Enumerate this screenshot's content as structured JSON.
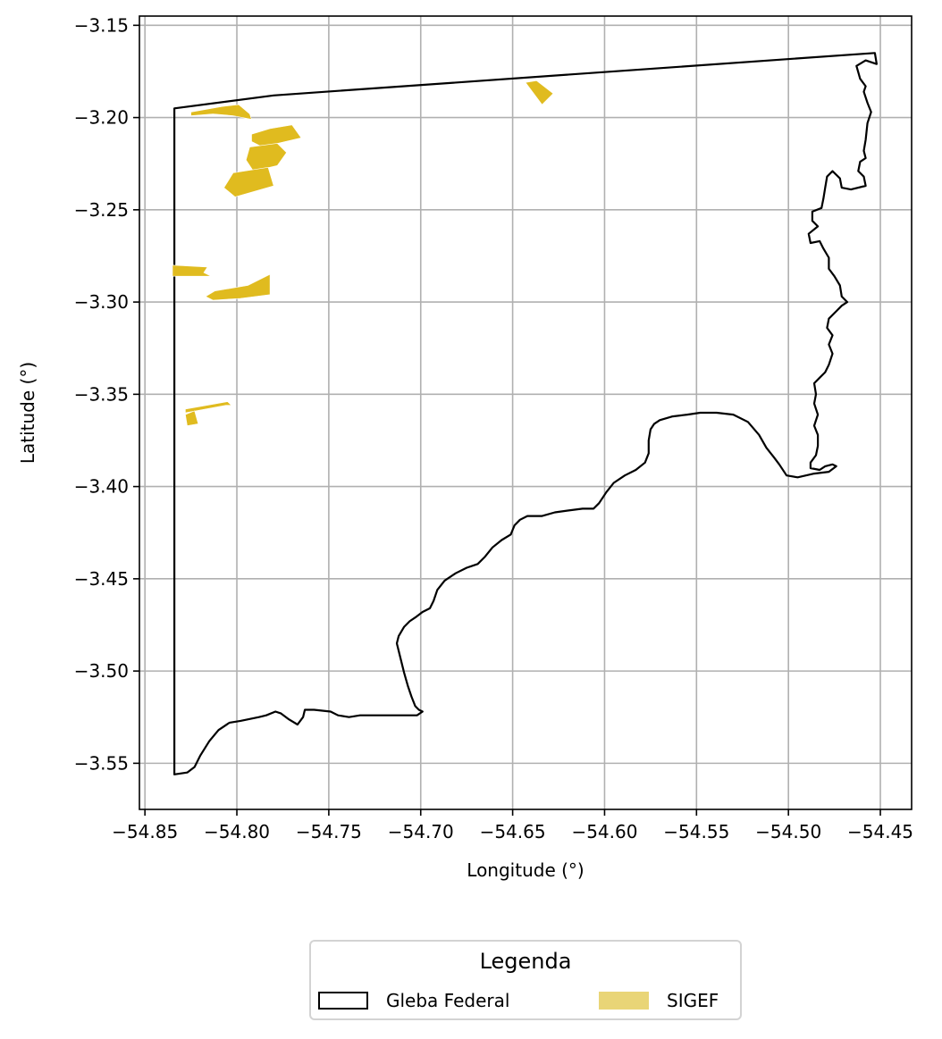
{
  "chart_data": {
    "type": "map",
    "xlabel": "Longitude (°)",
    "ylabel": "Latitude (°)",
    "xlim": [
      -54.853,
      -54.433
    ],
    "ylim": [
      -3.575,
      -3.145
    ],
    "xticks": [
      -54.85,
      -54.8,
      -54.75,
      -54.7,
      -54.65,
      -54.6,
      -54.55,
      -54.5,
      -54.45
    ],
    "xtick_labels": [
      "−54.85",
      "−54.80",
      "−54.75",
      "−54.70",
      "−54.65",
      "−54.60",
      "−54.55",
      "−54.50",
      "−54.45"
    ],
    "yticks": [
      -3.15,
      -3.2,
      -3.25,
      -3.3,
      -3.35,
      -3.4,
      -3.45,
      -3.5,
      -3.55
    ],
    "ytick_labels": [
      "−3.15",
      "−3.20",
      "−3.25",
      "−3.30",
      "−3.35",
      "−3.40",
      "−3.45",
      "−3.50",
      "−3.55"
    ],
    "grid": true,
    "legend": {
      "title": "Legenda",
      "placement": "bottom-center-outside",
      "entries": [
        {
          "label": "Gleba Federal",
          "style": "outline",
          "color": "#000000"
        },
        {
          "label": "SIGEF",
          "style": "fill",
          "color": "#e9d577"
        }
      ]
    },
    "layers": [
      {
        "name": "Gleba Federal",
        "style": "outline",
        "color": "#000000",
        "polygons": [
          [
            [
              -54.834,
              -3.195
            ],
            [
              -54.78,
              -3.188
            ],
            [
              -54.453,
              -3.165
            ],
            [
              -54.452,
              -3.171
            ],
            [
              -54.458,
              -3.169
            ],
            [
              -54.463,
              -3.172
            ],
            [
              -54.461,
              -3.179
            ],
            [
              -54.458,
              -3.183
            ],
            [
              -54.459,
              -3.186
            ],
            [
              -54.457,
              -3.192
            ],
            [
              -54.455,
              -3.197
            ],
            [
              -54.457,
              -3.203
            ],
            [
              -54.458,
              -3.212
            ],
            [
              -54.459,
              -3.218
            ],
            [
              -54.458,
              -3.222
            ],
            [
              -54.461,
              -3.224
            ],
            [
              -54.462,
              -3.229
            ],
            [
              -54.459,
              -3.232
            ],
            [
              -54.458,
              -3.237
            ],
            [
              -54.466,
              -3.239
            ],
            [
              -54.471,
              -3.238
            ],
            [
              -54.472,
              -3.233
            ],
            [
              -54.476,
              -3.229
            ],
            [
              -54.479,
              -3.232
            ],
            [
              -54.48,
              -3.238
            ],
            [
              -54.481,
              -3.244
            ],
            [
              -54.482,
              -3.249
            ],
            [
              -54.487,
              -3.251
            ],
            [
              -54.487,
              -3.256
            ],
            [
              -54.484,
              -3.259
            ],
            [
              -54.489,
              -3.263
            ],
            [
              -54.488,
              -3.268
            ],
            [
              -54.483,
              -3.267
            ],
            [
              -54.481,
              -3.271
            ],
            [
              -54.478,
              -3.276
            ],
            [
              -54.478,
              -3.282
            ],
            [
              -54.475,
              -3.286
            ],
            [
              -54.472,
              -3.291
            ],
            [
              -54.471,
              -3.297
            ],
            [
              -54.468,
              -3.3
            ],
            [
              -54.471,
              -3.302
            ],
            [
              -54.474,
              -3.305
            ],
            [
              -54.478,
              -3.309
            ],
            [
              -54.479,
              -3.314
            ],
            [
              -54.476,
              -3.318
            ],
            [
              -54.478,
              -3.323
            ],
            [
              -54.476,
              -3.328
            ],
            [
              -54.478,
              -3.334
            ],
            [
              -54.48,
              -3.338
            ],
            [
              -54.483,
              -3.341
            ],
            [
              -54.486,
              -3.344
            ],
            [
              -54.485,
              -3.35
            ],
            [
              -54.486,
              -3.355
            ],
            [
              -54.484,
              -3.361
            ],
            [
              -54.486,
              -3.367
            ],
            [
              -54.484,
              -3.372
            ],
            [
              -54.484,
              -3.378
            ],
            [
              -54.485,
              -3.383
            ],
            [
              -54.488,
              -3.387
            ],
            [
              -54.488,
              -3.39
            ],
            [
              -54.483,
              -3.391
            ],
            [
              -54.48,
              -3.389
            ],
            [
              -54.476,
              -3.388
            ],
            [
              -54.474,
              -3.389
            ],
            [
              -54.478,
              -3.392
            ],
            [
              -54.486,
              -3.393
            ],
            [
              -54.495,
              -3.395
            ],
            [
              -54.501,
              -3.394
            ],
            [
              -54.505,
              -3.388
            ],
            [
              -54.508,
              -3.384
            ],
            [
              -54.512,
              -3.379
            ],
            [
              -54.516,
              -3.372
            ],
            [
              -54.522,
              -3.365
            ],
            [
              -54.53,
              -3.361
            ],
            [
              -54.539,
              -3.36
            ],
            [
              -54.548,
              -3.36
            ],
            [
              -54.555,
              -3.361
            ],
            [
              -54.563,
              -3.362
            ],
            [
              -54.57,
              -3.364
            ],
            [
              -54.573,
              -3.366
            ],
            [
              -54.575,
              -3.369
            ],
            [
              -54.576,
              -3.375
            ],
            [
              -54.576,
              -3.382
            ],
            [
              -54.578,
              -3.387
            ],
            [
              -54.583,
              -3.391
            ],
            [
              -54.589,
              -3.394
            ],
            [
              -54.595,
              -3.398
            ],
            [
              -54.599,
              -3.403
            ],
            [
              -54.603,
              -3.409
            ],
            [
              -54.606,
              -3.412
            ],
            [
              -54.612,
              -3.412
            ],
            [
              -54.62,
              -3.413
            ],
            [
              -54.627,
              -3.414
            ],
            [
              -54.634,
              -3.416
            ],
            [
              -54.642,
              -3.416
            ],
            [
              -54.646,
              -3.418
            ],
            [
              -54.649,
              -3.421
            ],
            [
              -54.651,
              -3.426
            ],
            [
              -54.656,
              -3.429
            ],
            [
              -54.661,
              -3.433
            ],
            [
              -54.665,
              -3.438
            ],
            [
              -54.669,
              -3.442
            ],
            [
              -54.675,
              -3.444
            ],
            [
              -54.681,
              -3.447
            ],
            [
              -54.687,
              -3.451
            ],
            [
              -54.691,
              -3.456
            ],
            [
              -54.693,
              -3.462
            ],
            [
              -54.695,
              -3.466
            ],
            [
              -54.699,
              -3.468
            ],
            [
              -54.703,
              -3.471
            ],
            [
              -54.706,
              -3.473
            ],
            [
              -54.709,
              -3.476
            ],
            [
              -54.712,
              -3.481
            ],
            [
              -54.713,
              -3.485
            ],
            [
              -54.711,
              -3.493
            ],
            [
              -54.709,
              -3.501
            ],
            [
              -54.707,
              -3.508
            ],
            [
              -54.705,
              -3.514
            ],
            [
              -54.703,
              -3.519
            ],
            [
              -54.701,
              -3.521
            ],
            [
              -54.699,
              -3.522
            ],
            [
              -54.702,
              -3.524
            ],
            [
              -54.717,
              -3.524
            ],
            [
              -54.728,
              -3.524
            ],
            [
              -54.733,
              -3.524
            ],
            [
              -54.739,
              -3.525
            ],
            [
              -54.745,
              -3.524
            ],
            [
              -54.749,
              -3.522
            ],
            [
              -54.758,
              -3.521
            ],
            [
              -54.763,
              -3.521
            ],
            [
              -54.764,
              -3.525
            ],
            [
              -54.767,
              -3.529
            ],
            [
              -54.772,
              -3.526
            ],
            [
              -54.776,
              -3.523
            ],
            [
              -54.779,
              -3.522
            ],
            [
              -54.784,
              -3.524
            ],
            [
              -54.788,
              -3.525
            ],
            [
              -54.793,
              -3.526
            ],
            [
              -54.798,
              -3.527
            ],
            [
              -54.804,
              -3.528
            ],
            [
              -54.81,
              -3.532
            ],
            [
              -54.815,
              -3.538
            ],
            [
              -54.82,
              -3.546
            ],
            [
              -54.823,
              -3.552
            ],
            [
              -54.827,
              -3.555
            ],
            [
              -54.834,
              -3.556
            ],
            [
              -54.834,
              -3.195
            ]
          ]
        ]
      },
      {
        "name": "SIGEF",
        "style": "fill",
        "color": "#e0bb1f",
        "polygons": [
          [
            [
              -54.825,
              -3.197
            ],
            [
              -54.808,
              -3.194
            ],
            [
              -54.799,
              -3.193
            ],
            [
              -54.793,
              -3.198
            ],
            [
              -54.792,
              -3.201
            ],
            [
              -54.802,
              -3.199
            ],
            [
              -54.813,
              -3.198
            ],
            [
              -54.825,
              -3.199
            ]
          ],
          [
            [
              -54.792,
              -3.209
            ],
            [
              -54.782,
              -3.206
            ],
            [
              -54.77,
              -3.204
            ],
            [
              -54.765,
              -3.211
            ],
            [
              -54.778,
              -3.214
            ],
            [
              -54.786,
              -3.216
            ],
            [
              -54.792,
              -3.213
            ]
          ],
          [
            [
              -54.793,
              -3.216
            ],
            [
              -54.778,
              -3.214
            ],
            [
              -54.773,
              -3.219
            ],
            [
              -54.778,
              -3.226
            ],
            [
              -54.791,
              -3.229
            ],
            [
              -54.795,
              -3.223
            ]
          ],
          [
            [
              -54.802,
              -3.23
            ],
            [
              -54.783,
              -3.227
            ],
            [
              -54.78,
              -3.237
            ],
            [
              -54.801,
              -3.243
            ],
            [
              -54.807,
              -3.238
            ]
          ],
          [
            [
              -54.643,
              -3.181
            ],
            [
              -54.637,
              -3.18
            ],
            [
              -54.628,
              -3.187
            ],
            [
              -54.634,
              -3.193
            ]
          ],
          [
            [
              -54.835,
              -3.28
            ],
            [
              -54.816,
              -3.281
            ],
            [
              -54.818,
              -3.284
            ],
            [
              -54.814,
              -3.286
            ],
            [
              -54.835,
              -3.286
            ]
          ],
          [
            [
              -54.812,
              -3.294
            ],
            [
              -54.794,
              -3.291
            ],
            [
              -54.782,
              -3.285
            ],
            [
              -54.782,
              -3.296
            ],
            [
              -54.798,
              -3.298
            ],
            [
              -54.813,
              -3.299
            ],
            [
              -54.817,
              -3.297
            ]
          ],
          [
            [
              -54.828,
              -3.36
            ],
            [
              -54.806,
              -3.356
            ],
            [
              -54.803,
              -3.356
            ],
            [
              -54.805,
              -3.354
            ],
            [
              -54.828,
              -3.358
            ]
          ],
          [
            [
              -54.828,
              -3.361
            ],
            [
              -54.823,
              -3.359
            ],
            [
              -54.821,
              -3.366
            ],
            [
              -54.827,
              -3.367
            ]
          ]
        ]
      }
    ]
  }
}
